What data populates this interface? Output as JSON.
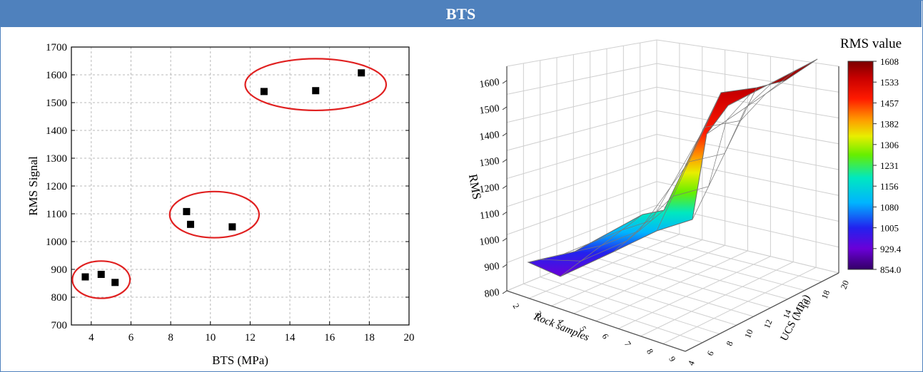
{
  "header": {
    "title": "BTS"
  },
  "chart_data": [
    {
      "type": "scatter",
      "xlabel": "BTS (MPa)",
      "ylabel": "RMS Signal",
      "xlim": [
        3,
        20
      ],
      "ylim": [
        700,
        1700
      ],
      "xticks": [
        4,
        6,
        8,
        10,
        12,
        14,
        16,
        18,
        20
      ],
      "yticks": [
        700,
        800,
        900,
        1000,
        1100,
        1200,
        1300,
        1400,
        1500,
        1600,
        1700
      ],
      "grid": true,
      "points": [
        {
          "x": 3.7,
          "y": 873
        },
        {
          "x": 4.5,
          "y": 882
        },
        {
          "x": 5.2,
          "y": 853
        },
        {
          "x": 8.8,
          "y": 1108
        },
        {
          "x": 9.0,
          "y": 1062
        },
        {
          "x": 11.1,
          "y": 1053
        },
        {
          "x": 12.7,
          "y": 1540
        },
        {
          "x": 15.3,
          "y": 1543
        },
        {
          "x": 17.6,
          "y": 1607
        }
      ],
      "clusters": [
        {
          "cx": 4.5,
          "cy": 863,
          "rx": 1.45,
          "ry": 67
        },
        {
          "cx": 10.2,
          "cy": 1097,
          "rx": 2.25,
          "ry": 83
        },
        {
          "cx": 15.3,
          "cy": 1565,
          "rx": 3.55,
          "ry": 93
        }
      ],
      "marker_color": "#000000",
      "cluster_color": "#e02020"
    },
    {
      "type": "surface3d",
      "zlabel": "RMS",
      "xlabel": "Rock samples",
      "ylabel": "UCS (MPa)",
      "zticks": [
        800,
        900,
        1000,
        1100,
        1200,
        1300,
        1400,
        1500,
        1600
      ],
      "xticks": [
        2,
        3,
        4,
        5,
        6,
        7,
        8,
        9
      ],
      "yticks": [
        4,
        6,
        8,
        10,
        12,
        14,
        16,
        18,
        20
      ],
      "colorbar": {
        "title": "RMS value",
        "labels": [
          "1608",
          "1533",
          "1457",
          "1382",
          "1306",
          "1231",
          "1156",
          "1080",
          "1005",
          "929.4",
          "854.0"
        ],
        "min": 854.0,
        "max": 1608
      },
      "profile_values": [
        854,
        873,
        882,
        1053,
        1062,
        1108,
        1540,
        1543,
        1607
      ]
    }
  ]
}
